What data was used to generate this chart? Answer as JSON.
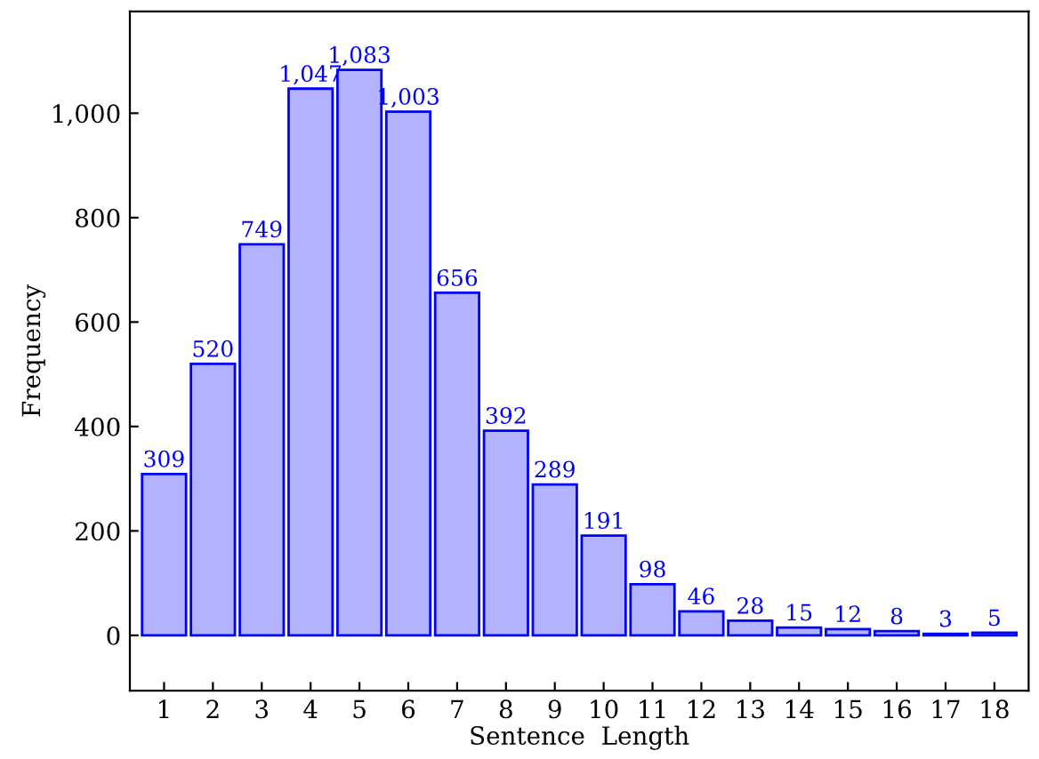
{
  "chart_data": {
    "type": "bar",
    "xlabel": "Sentence  Length",
    "ylabel": "Frequency",
    "categories": [
      "1",
      "2",
      "3",
      "4",
      "5",
      "6",
      "7",
      "8",
      "9",
      "10",
      "11",
      "12",
      "13",
      "14",
      "15",
      "16",
      "17",
      "18"
    ],
    "series": [
      {
        "color": "#0000ff",
        "values": [
          309,
          520,
          749,
          1047,
          1083,
          1003,
          656,
          392,
          289,
          191,
          98,
          46,
          28,
          15,
          12,
          8,
          3,
          5
        ],
        "value_labels": [
          "309",
          "520",
          "749",
          "1,047",
          "1,083",
          "1,003",
          "656",
          "392",
          "289",
          "191",
          "98",
          "46",
          "28",
          "15",
          "12",
          "8",
          "3",
          "5"
        ]
      }
    ],
    "ylim": [
      -106,
      1195
    ],
    "yticks": [
      0,
      200,
      400,
      600,
      800,
      {
        "value": 1000,
        "label": "1,000"
      }
    ],
    "grid": false,
    "legend": false
  }
}
